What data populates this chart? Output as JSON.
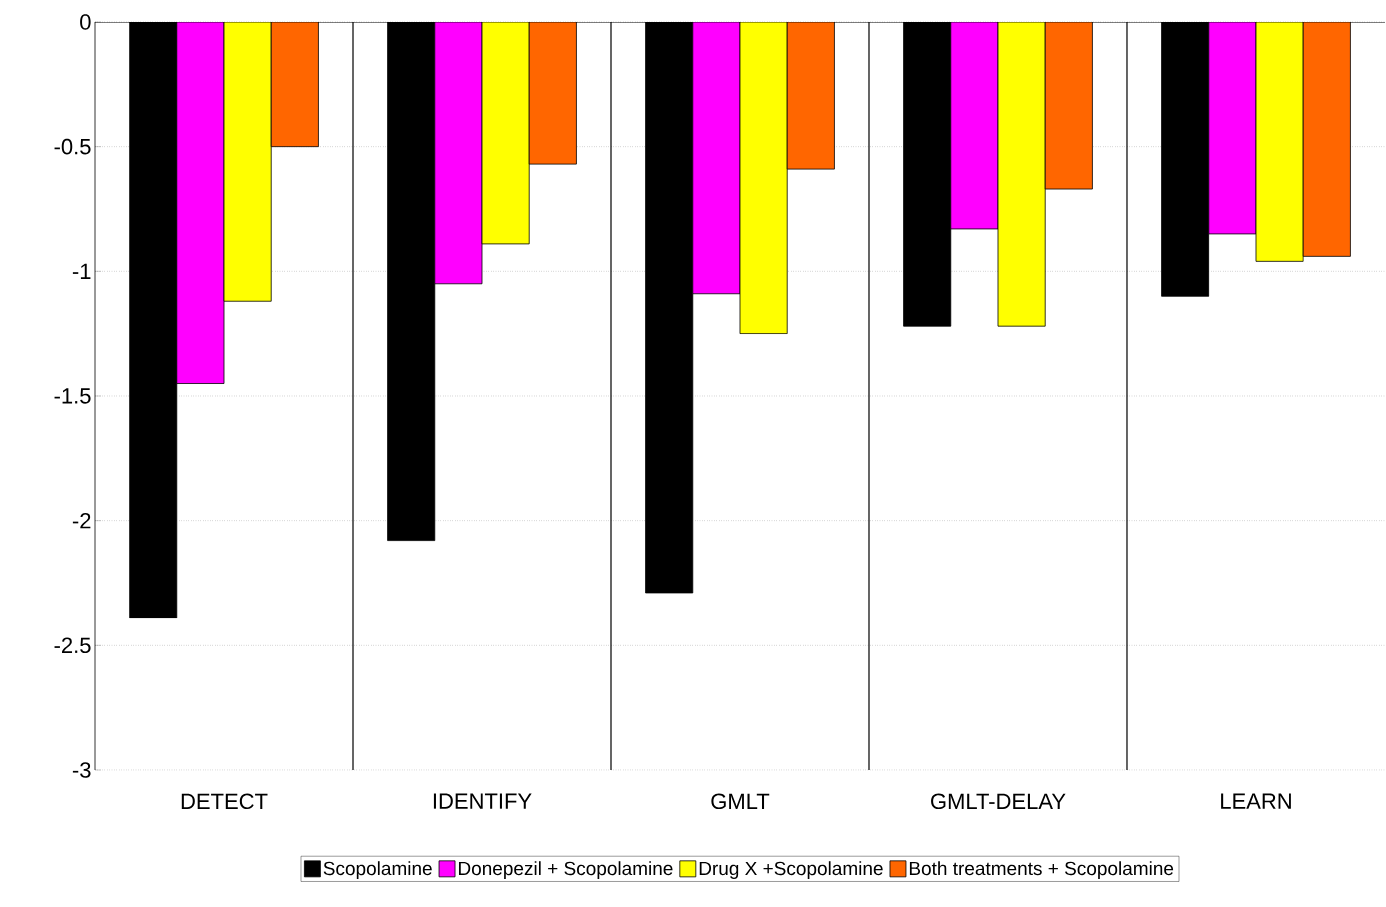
{
  "chart_data": {
    "type": "bar",
    "categories": [
      "DETECT",
      "IDENTIFY",
      "GMLT",
      "GMLT-DELAY",
      "LEARN"
    ],
    "series": [
      {
        "name": "Scopolamine",
        "color": "#000000",
        "values": [
          -2.39,
          -2.08,
          -2.29,
          -1.22,
          -1.1
        ]
      },
      {
        "name": "Donepezil + Scopolamine",
        "color": "#ff00ff",
        "values": [
          -1.45,
          -1.05,
          -1.09,
          -0.83,
          -0.85
        ]
      },
      {
        "name": "Drug X +Scopolamine",
        "color": "#ffff00",
        "values": [
          -1.12,
          -0.89,
          -1.25,
          -1.22,
          -0.96
        ]
      },
      {
        "name": "Both treatments  + Scopolamine",
        "color": "#ff6600",
        "values": [
          -0.5,
          -0.57,
          -0.59,
          -0.67,
          -0.94
        ]
      }
    ],
    "ylim": [
      -3,
      0
    ],
    "yticks": [
      -3,
      -2.5,
      -2,
      -1.5,
      -1,
      -0.5,
      0
    ],
    "grid": "y",
    "legend": "bottom"
  }
}
